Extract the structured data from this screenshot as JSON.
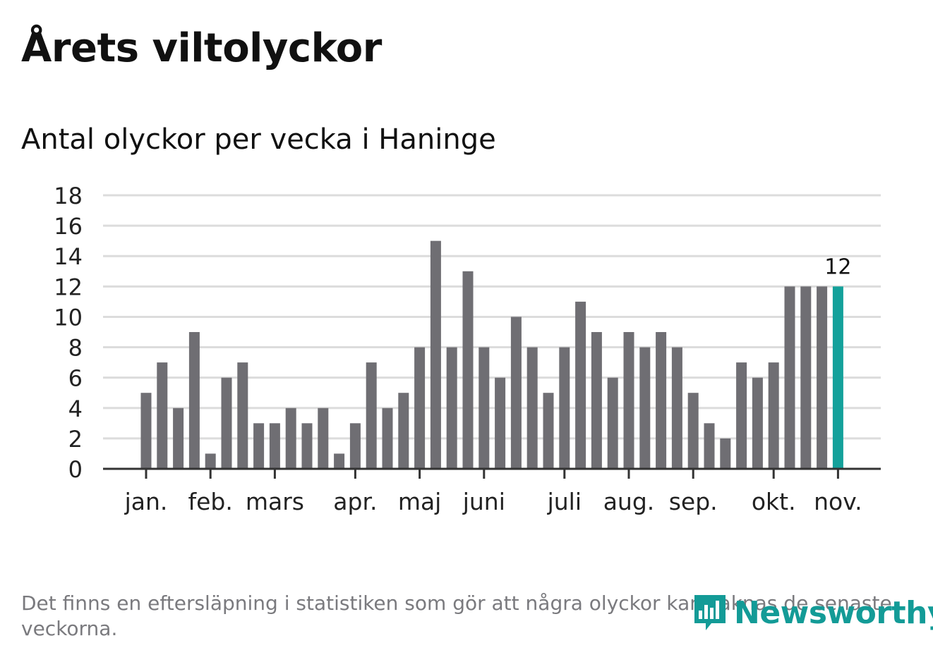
{
  "title": "Årets viltolyckor",
  "subtitle": "Antal olyckor per vecka i Haninge",
  "footnote": "Det finns en eftersläpning i statistiken som gör att några olyckor kan saknas de senaste veckorna.",
  "logo": {
    "text": "Newsworthy",
    "icon": "bar-chart-speech-bubble-icon",
    "color": "#139b97"
  },
  "chart_data": {
    "type": "bar",
    "ylim": [
      0,
      18
    ],
    "yticks": [
      0,
      2,
      4,
      6,
      8,
      10,
      12,
      14,
      16,
      18
    ],
    "grid": true,
    "bar_color": "#6f6e73",
    "highlight_color": "#14a19b",
    "values": [
      5,
      7,
      4,
      9,
      1,
      6,
      7,
      3,
      3,
      4,
      3,
      4,
      1,
      3,
      7,
      4,
      5,
      8,
      15,
      8,
      13,
      8,
      6,
      10,
      8,
      5,
      8,
      11,
      9,
      6,
      9,
      8,
      9,
      8,
      5,
      3,
      2,
      7,
      6,
      7,
      12,
      12,
      12,
      12
    ],
    "highlight_index": 43,
    "highlight_label": "12",
    "month_labels": [
      {
        "label": "jan.",
        "bar": 0
      },
      {
        "label": "feb.",
        "bar": 4
      },
      {
        "label": "mars",
        "bar": 8
      },
      {
        "label": "apr.",
        "bar": 13
      },
      {
        "label": "maj",
        "bar": 17
      },
      {
        "label": "juni",
        "bar": 21
      },
      {
        "label": "juli",
        "bar": 26
      },
      {
        "label": "aug.",
        "bar": 30
      },
      {
        "label": "sep.",
        "bar": 34
      },
      {
        "label": "okt.",
        "bar": 39
      },
      {
        "label": "nov.",
        "bar": 43
      }
    ]
  }
}
